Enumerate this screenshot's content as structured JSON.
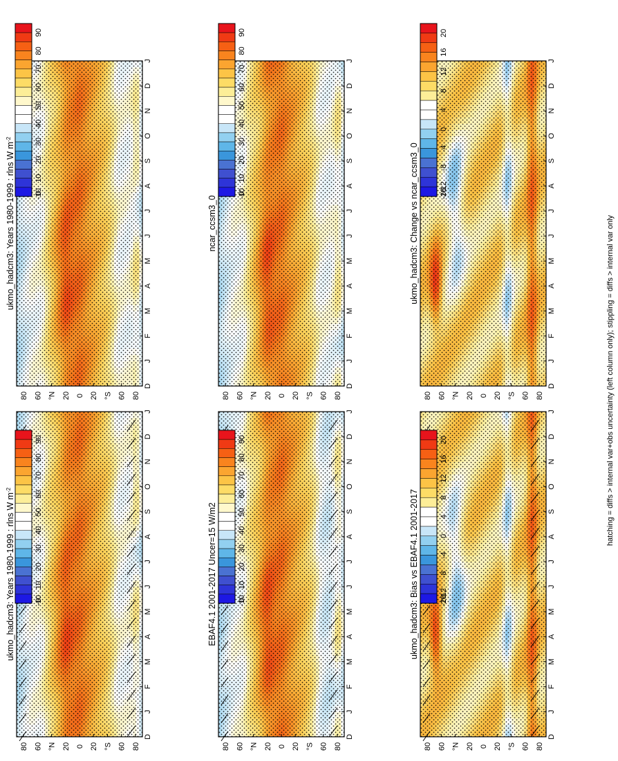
{
  "footer_note": "hatching = diffs > internal var+obs uncertainty (left column only); stippling = diffs > internal var only",
  "colorbars": {
    "abs": {
      "labels": [
        "90",
        "80",
        "70",
        "60",
        "50",
        "40",
        "30",
        "20",
        "10",
        "0",
        "-10"
      ],
      "colors": [
        "#e8141c",
        "#f03a14",
        "#f66014",
        "#f9841e",
        "#fba530",
        "#fcc446",
        "#fddc66",
        "#fdee98",
        "#fff8cc",
        "#ffffff",
        "#ffffff",
        "#c8e6f8",
        "#92d0f0",
        "#5fb6e8",
        "#3a96dc",
        "#4a72d2",
        "#3f50d0",
        "#2e34d8",
        "#1d18e4"
      ]
    },
    "diff": {
      "labels": [
        "20",
        "16",
        "12",
        "8",
        "4",
        "0",
        "-4",
        "-8",
        "-12",
        "-16",
        "-20"
      ],
      "colors": [
        "#e8141c",
        "#f03a14",
        "#f66014",
        "#f9841e",
        "#fba530",
        "#fcc446",
        "#fddc66",
        "#fdee98",
        "#ffffff",
        "#ffffff",
        "#c8e6f8",
        "#92d0f0",
        "#5fb6e8",
        "#3a96dc",
        "#4a72d2",
        "#3f50d0",
        "#2e34d8",
        "#1d18e4"
      ]
    }
  },
  "axes": {
    "months": [
      "D",
      "J",
      "F",
      "M",
      "A",
      "M",
      "J",
      "J",
      "A",
      "S",
      "O",
      "N",
      "D",
      "J"
    ],
    "lat_labels": [
      "80",
      "60",
      "°N",
      "20",
      "0",
      "20",
      "°S",
      "60",
      "80"
    ]
  },
  "chart_data": [
    {
      "id": "p1",
      "type": "heatmap",
      "title": "ukmo_hadcm3: Years 1980-1999 : rlns W m",
      "title_sup": "-2",
      "colorbar": "abs",
      "hatched": true,
      "stippled": true,
      "units": "W m-2",
      "xlabel": "month",
      "ylabel": "latitude",
      "ylim": [
        -90,
        90
      ]
    },
    {
      "id": "p2",
      "type": "heatmap",
      "title": "ukmo_hadcm3: Years 1980-1999 : rlns W m",
      "title_sup": "-2",
      "colorbar": "abs",
      "hatched": false,
      "stippled": true,
      "units": "W m-2",
      "xlabel": "month",
      "ylabel": "latitude",
      "ylim": [
        -90,
        90
      ]
    },
    {
      "id": "p3",
      "type": "heatmap",
      "title": "EBAF4.1 2001-2017 Uncer=15 W/m2",
      "title_sup": "",
      "colorbar": "abs",
      "hatched": true,
      "stippled": true,
      "units": "W m-2",
      "xlabel": "month",
      "ylabel": "latitude",
      "ylim": [
        -90,
        90
      ]
    },
    {
      "id": "p4",
      "type": "heatmap",
      "title": "ncar_ccsm3_0",
      "title_sup": "",
      "colorbar": "abs",
      "hatched": false,
      "stippled": true,
      "units": "W m-2",
      "xlabel": "month",
      "ylabel": "latitude",
      "ylim": [
        -90,
        90
      ]
    },
    {
      "id": "p5",
      "type": "heatmap",
      "title": "ukmo_hadcm3: Bias vs EBAF4.1 2001-2017",
      "title_sup": "",
      "colorbar": "diff",
      "hatched": true,
      "stippled": true,
      "units": "W m-2",
      "xlabel": "month",
      "ylabel": "latitude",
      "ylim": [
        -90,
        90
      ]
    },
    {
      "id": "p6",
      "type": "heatmap",
      "title": "ukmo_hadcm3: Change vs ncar_ccsm3_0",
      "title_sup": "",
      "colorbar": "diff",
      "hatched": false,
      "stippled": true,
      "units": "W m-2",
      "xlabel": "month",
      "ylabel": "latitude",
      "ylim": [
        -90,
        90
      ]
    }
  ]
}
